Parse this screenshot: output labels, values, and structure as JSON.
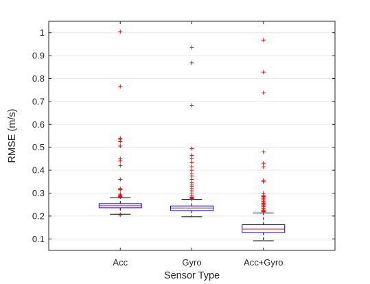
{
  "chart_data": {
    "type": "box",
    "xlabel": "Sensor Type",
    "ylabel": "RMSE (m/s)",
    "ylim": [
      0.05,
      1.05
    ],
    "yticks": [
      0.1,
      0.2,
      0.3,
      0.4,
      0.5,
      0.6,
      0.7,
      0.8,
      0.9,
      1
    ],
    "grid": "horizontal",
    "categories": [
      "Acc",
      "Gyro",
      "Acc+Gyro"
    ],
    "boxes": [
      {
        "category": "Acc",
        "whisker_low": 0.208,
        "q1": 0.236,
        "median": 0.245,
        "q3": 0.254,
        "whisker_high": 0.28,
        "outliers": [
          1.005,
          0.765,
          0.54,
          0.535,
          0.525,
          0.505,
          0.45,
          0.44,
          0.42,
          0.36,
          0.32,
          0.315,
          0.295,
          0.29,
          0.288,
          0.285,
          0.283,
          0.205
        ]
      },
      {
        "category": "Gyro",
        "whisker_low": 0.197,
        "q1": 0.224,
        "median": 0.235,
        "q3": 0.244,
        "whisker_high": 0.273,
        "outliers": [
          0.935,
          0.868,
          0.683,
          0.495,
          0.465,
          0.45,
          0.435,
          0.415,
          0.4,
          0.385,
          0.375,
          0.36,
          0.345,
          0.335,
          0.33,
          0.32,
          0.31,
          0.3,
          0.29,
          0.283,
          0.28,
          0.278,
          0.276
        ]
      },
      {
        "category": "Acc+Gyro",
        "whisker_low": 0.092,
        "q1": 0.128,
        "median": 0.143,
        "q3": 0.162,
        "whisker_high": 0.213,
        "outliers": [
          0.968,
          0.828,
          0.738,
          0.48,
          0.43,
          0.415,
          0.355,
          0.35,
          0.3,
          0.29,
          0.285,
          0.28,
          0.275,
          0.27,
          0.265,
          0.26,
          0.255,
          0.25,
          0.245,
          0.24,
          0.235,
          0.23,
          0.225,
          0.22,
          0.218
        ]
      }
    ]
  },
  "colors": {
    "box": "#0000ff",
    "median": "#ff0000",
    "whisker": "#000000",
    "outlier": "#ff0000",
    "grid": "#e6e6e6",
    "axis": "#262626"
  }
}
